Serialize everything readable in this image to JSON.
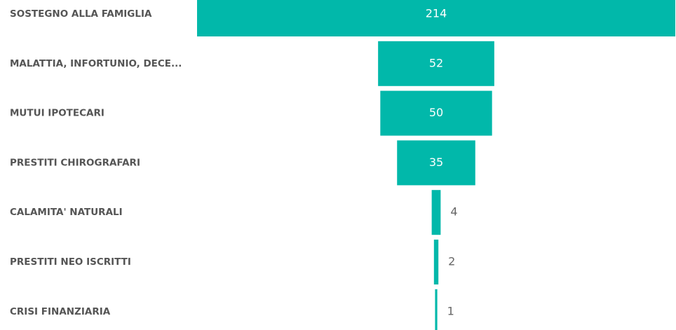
{
  "chart_data": {
    "type": "funnel",
    "categories": [
      "SOSTEGNO ALLA FAMIGLIA",
      "MALATTIA, INFORTUNIO, DECE...",
      "MUTUI IPOTECARI",
      "PRESTITI CHIROGRAFARI",
      "CALAMITA' NATURALI",
      "PRESTITI NEO ISCRITTI",
      "CRISI FINANZIARIA"
    ],
    "values": [
      214,
      52,
      50,
      35,
      4,
      2,
      1
    ],
    "color": "#01b8aa"
  }
}
